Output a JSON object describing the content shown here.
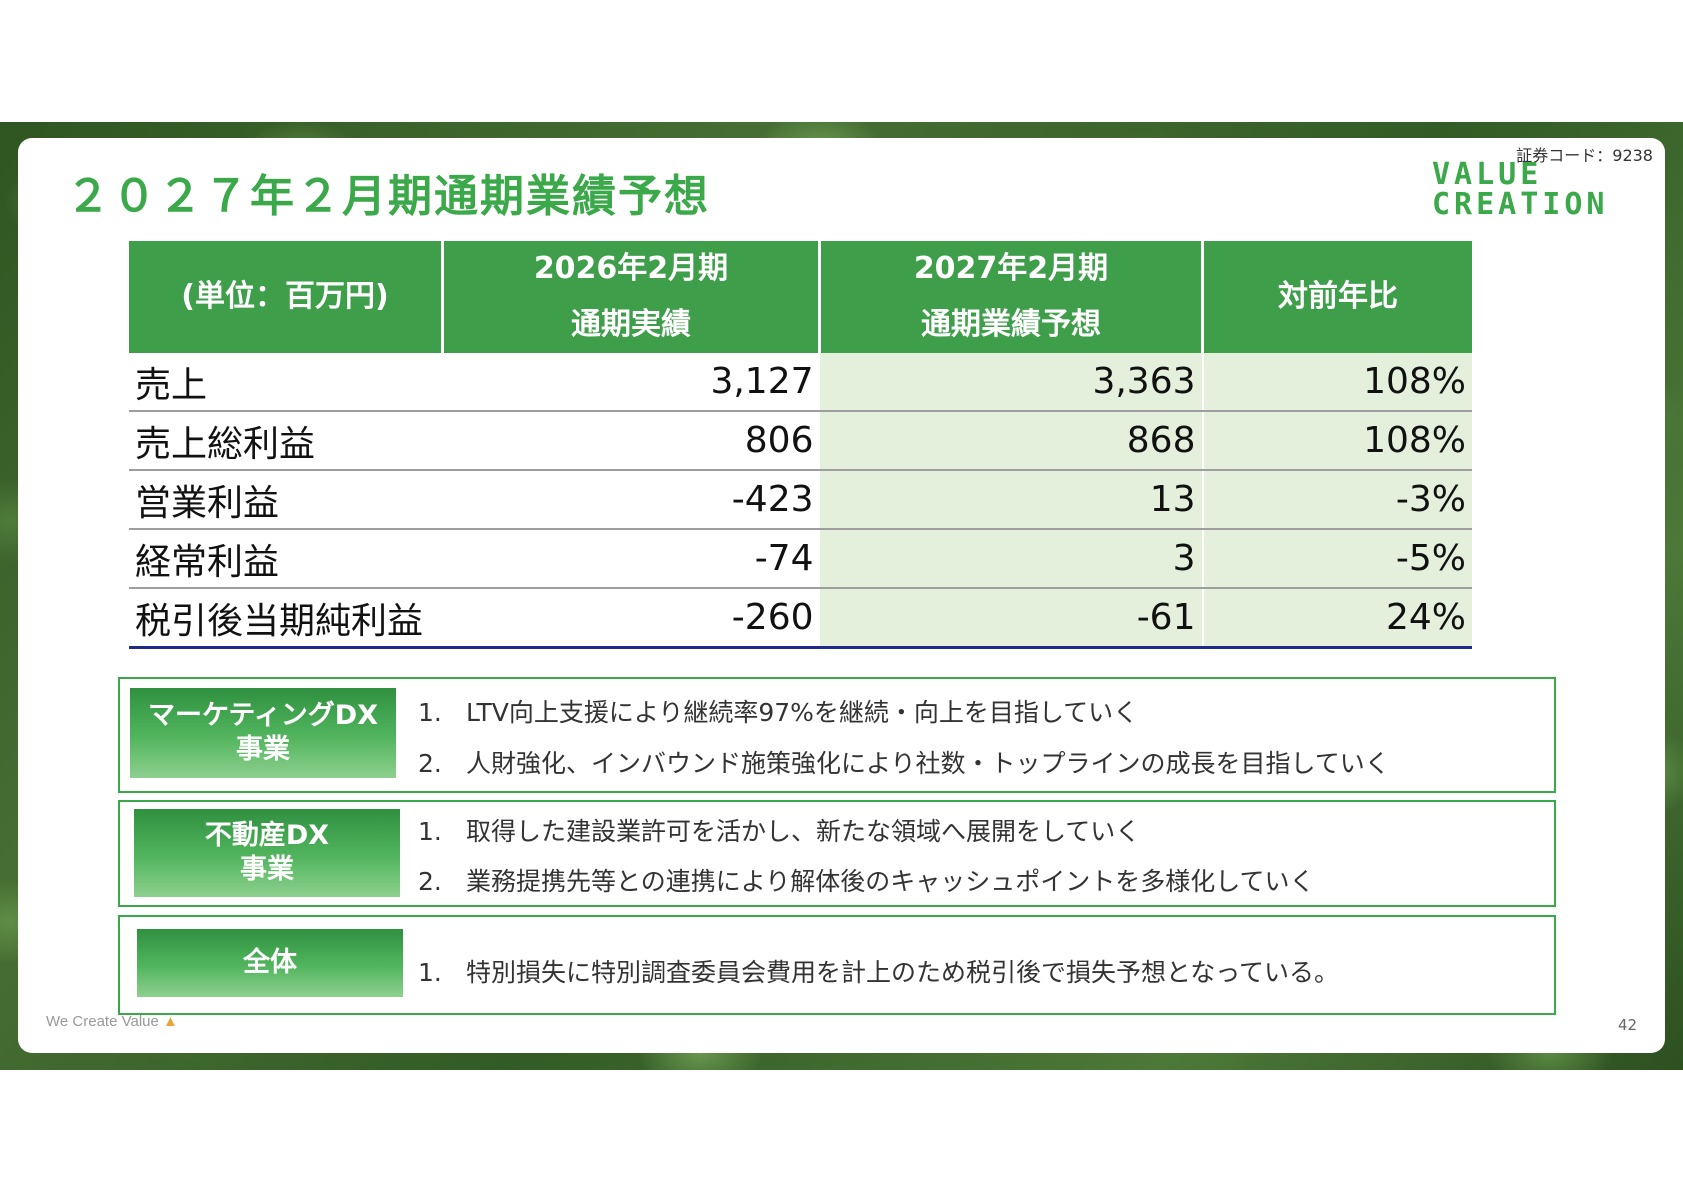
{
  "header": {
    "stock_code": "証券コード：9238",
    "title": "２０２７年２月期通期業績予想",
    "logo_line1": "VALUE",
    "logo_line2": "CREATION"
  },
  "table": {
    "headers": {
      "unit": "(単位：百万円)",
      "col1_line1": "2026年2月期",
      "col1_line2": "通期実績",
      "col2_line1": "2027年2月期",
      "col2_line2": "通期業績予想",
      "col3": "対前年比"
    },
    "rows": [
      {
        "label": "売上",
        "actual": "3,127",
        "forecast": "3,363",
        "ratio": "108%"
      },
      {
        "label": "売上総利益",
        "actual": "806",
        "forecast": "868",
        "ratio": "108%"
      },
      {
        "label": "営業利益",
        "actual": "-423",
        "forecast": "13",
        "ratio": "-3%"
      },
      {
        "label": "経常利益",
        "actual": "-74",
        "forecast": "3",
        "ratio": "-5%"
      },
      {
        "label": "税引後当期純利益",
        "actual": "-260",
        "forecast": "-61",
        "ratio": "24%"
      }
    ]
  },
  "segments": [
    {
      "tag_line1": "マーケティングDX",
      "tag_line2": "事業",
      "items": [
        {
          "num": "1.",
          "text": "LTV向上支援により継続率97%を継続・向上を目指していく"
        },
        {
          "num": "2.",
          "text": "人財強化、インバウンド施策強化により社数・トップラインの成長を目指していく"
        }
      ]
    },
    {
      "tag_line1": "不動産DX",
      "tag_line2": "事業",
      "items": [
        {
          "num": "1.",
          "text": "取得した建設業許可を活かし、新たな領域へ展開をしていく"
        },
        {
          "num": "2.",
          "text": "業務提携先等との連携により解体後のキャッシュポイントを多様化していく"
        }
      ]
    },
    {
      "tag_line1": "全体",
      "items": [
        {
          "num": "1.",
          "text": "特別損失に特別調査委員会費用を計上のため税引後で損失予想となっている。"
        }
      ]
    }
  ],
  "footer": {
    "tagline": "We Create Value",
    "page_number": "42"
  },
  "colors": {
    "brand_green": "#3ba84a",
    "header_green": "#3e9e4a",
    "forecast_bg": "#e4f0db",
    "negative": "#ff0000"
  }
}
